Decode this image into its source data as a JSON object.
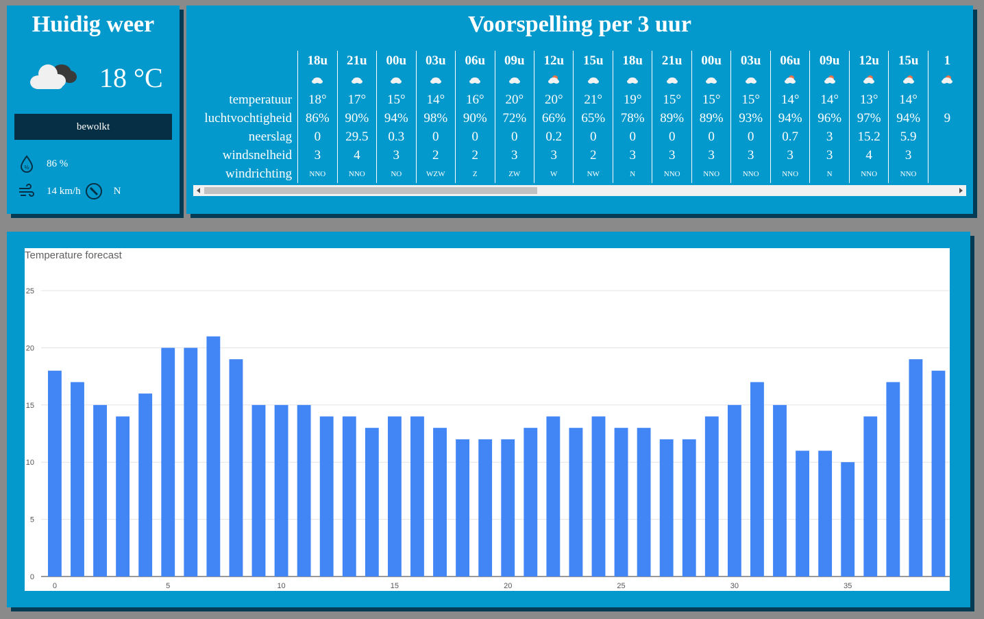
{
  "current": {
    "title": "Huidig weer",
    "temperature": "18 °C",
    "description": "bewolkt",
    "humidity": "86 %",
    "wind_speed": "14 km/h",
    "wind_direction": "N",
    "icons": {
      "weather": "cloud-icon",
      "humidity": "humidity-drop-icon",
      "wind": "wind-icon",
      "compass": "compass-icon"
    }
  },
  "forecast": {
    "title": "Voorspelling per 3 uur",
    "row_labels": {
      "temperature": "temperatuur",
      "humidity": "luchtvochtigheid",
      "precipitation": "neerslag",
      "wind_speed": "windsnelheid",
      "wind_direction": "windrichting"
    },
    "columns": [
      {
        "time": "18u",
        "icon": "cloudy-night-icon",
        "temp": "18°",
        "hum": "86%",
        "rain": "0",
        "wind": "3",
        "dir": "NNO"
      },
      {
        "time": "21u",
        "icon": "cloudy-night-icon",
        "temp": "17°",
        "hum": "90%",
        "rain": "29.5",
        "wind": "4",
        "dir": "NNO"
      },
      {
        "time": "00u",
        "icon": "cloudy-night-icon",
        "temp": "15°",
        "hum": "94%",
        "rain": "0.3",
        "wind": "3",
        "dir": "NO"
      },
      {
        "time": "03u",
        "icon": "cloudy-night-icon",
        "temp": "14°",
        "hum": "98%",
        "rain": "0",
        "wind": "2",
        "dir": "WZW"
      },
      {
        "time": "06u",
        "icon": "cloudy-icon",
        "temp": "16°",
        "hum": "90%",
        "rain": "0",
        "wind": "2",
        "dir": "Z"
      },
      {
        "time": "09u",
        "icon": "cloudy-icon",
        "temp": "20°",
        "hum": "72%",
        "rain": "0",
        "wind": "3",
        "dir": "ZW"
      },
      {
        "time": "12u",
        "icon": "partly-sunny-icon",
        "temp": "20°",
        "hum": "66%",
        "rain": "0.2",
        "wind": "3",
        "dir": "W"
      },
      {
        "time": "15u",
        "icon": "cloudy-icon",
        "temp": "21°",
        "hum": "65%",
        "rain": "0",
        "wind": "2",
        "dir": "NW"
      },
      {
        "time": "18u",
        "icon": "cloudy-icon",
        "temp": "19°",
        "hum": "78%",
        "rain": "0",
        "wind": "3",
        "dir": "N"
      },
      {
        "time": "21u",
        "icon": "cloudy-night-icon",
        "temp": "15°",
        "hum": "89%",
        "rain": "0",
        "wind": "3",
        "dir": "NNO"
      },
      {
        "time": "00u",
        "icon": "cloudy-night-icon",
        "temp": "15°",
        "hum": "89%",
        "rain": "0",
        "wind": "3",
        "dir": "NNO"
      },
      {
        "time": "03u",
        "icon": "cloudy-night-icon",
        "temp": "15°",
        "hum": "93%",
        "rain": "0",
        "wind": "3",
        "dir": "NNO"
      },
      {
        "time": "06u",
        "icon": "partly-sunny-icon",
        "temp": "14°",
        "hum": "94%",
        "rain": "0.7",
        "wind": "3",
        "dir": "NNO"
      },
      {
        "time": "09u",
        "icon": "partly-sunny-icon",
        "temp": "14°",
        "hum": "96%",
        "rain": "3",
        "wind": "3",
        "dir": "N"
      },
      {
        "time": "12u",
        "icon": "partly-sunny-icon",
        "temp": "13°",
        "hum": "97%",
        "rain": "15.2",
        "wind": "4",
        "dir": "NNO"
      },
      {
        "time": "15u",
        "icon": "partly-sunny-icon",
        "temp": "14°",
        "hum": "94%",
        "rain": "5.9",
        "wind": "3",
        "dir": "NNO"
      },
      {
        "time": "1",
        "icon": "partly-sunny-icon",
        "temp": "",
        "hum": "9",
        "rain": "",
        "wind": "",
        "dir": ""
      }
    ]
  },
  "chart_data": {
    "type": "bar",
    "title": "Temperature forecast",
    "x": [
      0,
      1,
      2,
      3,
      4,
      5,
      6,
      7,
      8,
      9,
      10,
      11,
      12,
      13,
      14,
      15,
      16,
      17,
      18,
      19,
      20,
      21,
      22,
      23,
      24,
      25,
      26,
      27,
      28,
      29,
      30,
      31,
      32,
      33,
      34,
      35,
      36,
      37,
      38,
      39
    ],
    "values": [
      18,
      17,
      15,
      14,
      16,
      20,
      20,
      21,
      19,
      15,
      15,
      15,
      14,
      14,
      13,
      14,
      14,
      13,
      12,
      12,
      12,
      13,
      14,
      13,
      14,
      13,
      13,
      12,
      12,
      14,
      15,
      17,
      15,
      11,
      11,
      10,
      14,
      17,
      19,
      18
    ],
    "x_ticks": [
      0,
      5,
      10,
      15,
      20,
      25,
      30,
      35
    ],
    "y_ticks": [
      0,
      5,
      10,
      15,
      20,
      25
    ],
    "ylim": [
      0,
      25
    ],
    "bar_color": "#4285f4",
    "grid": true
  }
}
